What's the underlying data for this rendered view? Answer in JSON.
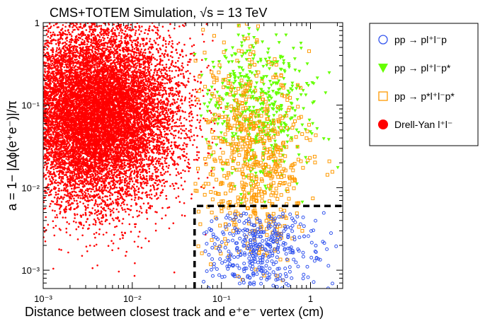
{
  "chart_data": {
    "type": "scatter",
    "title": "CMS+TOTEM Simulation, √s = 13 TeV",
    "xlabel": "Distance between closest track and e⁺e⁻ vertex (cm)",
    "ylabel": "a = 1− |Δϕ(e⁺e⁻)|/π",
    "x_scale": "log",
    "y_scale": "log",
    "xlim": [
      0.001,
      2.3
    ],
    "ylim": [
      0.0006,
      1.0
    ],
    "x_ticks": [
      {
        "value": 0.001,
        "label": "10⁻³"
      },
      {
        "value": 0.01,
        "label": "10⁻²"
      },
      {
        "value": 0.1,
        "label": "10⁻¹"
      },
      {
        "value": 1,
        "label": "1"
      }
    ],
    "y_ticks": [
      {
        "value": 0.001,
        "label": "10⁻³"
      },
      {
        "value": 0.01,
        "label": "10⁻²"
      },
      {
        "value": 0.1,
        "label": "10⁻¹"
      },
      {
        "value": 1,
        "label": "1"
      }
    ],
    "grid": false,
    "legend_position": "outside-right",
    "selection_box": {
      "x_min": 0.05,
      "x_max": 2.3,
      "y_min": 0.0006,
      "y_max": 0.006
    },
    "series": [
      {
        "name": "Drell-Yan l⁺l⁻",
        "marker": "filled-circle",
        "color": "#ff0000",
        "count": 12000,
        "x_range": [
          0.001,
          0.1
        ],
        "y_range": [
          0.0006,
          1.0
        ],
        "x_peak": 0.004,
        "y_peak": 0.08
      },
      {
        "name": "pp → pl⁺l⁻p*",
        "marker": "filled-triangle-down",
        "color": "#66ff00",
        "count": 500,
        "x_range": [
          0.05,
          2.3
        ],
        "y_range": [
          0.005,
          1.0
        ],
        "x_peak": 0.25,
        "y_peak": 0.1
      },
      {
        "name": "pp → p*l⁺l⁻p*",
        "marker": "open-square",
        "color": "#ff9900",
        "count": 650,
        "x_range": [
          0.05,
          2.3
        ],
        "y_range": [
          0.0006,
          1.0
        ],
        "x_peak": 0.22,
        "y_peak": 0.02
      },
      {
        "name": "pp → pl⁺l⁻p",
        "marker": "open-circle",
        "color": "#3355ee",
        "count": 380,
        "x_range": [
          0.06,
          2.3
        ],
        "y_range": [
          0.0006,
          0.005
        ],
        "x_peak": 0.3,
        "y_peak": 0.0018
      }
    ],
    "legend": [
      {
        "label": "pp → pl⁺l⁻p",
        "marker": "open-circle",
        "color": "#3355ee"
      },
      {
        "label": "pp → pl⁺l⁻p*",
        "marker": "filled-triangle-down",
        "color": "#66ff00"
      },
      {
        "label": "pp → p*l⁺l⁻p*",
        "marker": "open-square",
        "color": "#ff9900"
      },
      {
        "label": "Drell-Yan l⁺l⁻",
        "marker": "filled-circle",
        "color": "#ff0000"
      }
    ]
  }
}
